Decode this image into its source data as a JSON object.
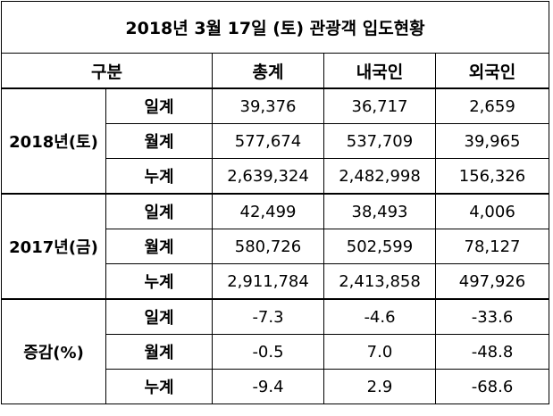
{
  "title": "2018년 3월 17일 (토) 관광객 입도현황",
  "header": {
    "category": "구분",
    "total": "총계",
    "domestic": "내국인",
    "foreign": "외국인"
  },
  "groups": [
    {
      "label": "2018년(토)",
      "rows": [
        {
          "label": "일계",
          "total": "39,376",
          "domestic": "36,717",
          "foreign": "2,659"
        },
        {
          "label": "월계",
          "total": "577,674",
          "domestic": "537,709",
          "foreign": "39,965"
        },
        {
          "label": "누계",
          "total": "2,639,324",
          "domestic": "2,482,998",
          "foreign": "156,326"
        }
      ]
    },
    {
      "label": "2017년(금)",
      "rows": [
        {
          "label": "일계",
          "total": "42,499",
          "domestic": "38,493",
          "foreign": "4,006"
        },
        {
          "label": "월계",
          "total": "580,726",
          "domestic": "502,599",
          "foreign": "78,127"
        },
        {
          "label": "누계",
          "total": "2,911,784",
          "domestic": "2,413,858",
          "foreign": "497,926"
        }
      ]
    },
    {
      "label": "증감(%)",
      "rows": [
        {
          "label": "일계",
          "total": "-7.3",
          "domestic": "-4.6",
          "foreign": "-33.6"
        },
        {
          "label": "월계",
          "total": "-0.5",
          "domestic": "7.0",
          "foreign": "-48.8"
        },
        {
          "label": "누계",
          "total": "-9.4",
          "domestic": "2.9",
          "foreign": "-68.6"
        }
      ]
    }
  ]
}
